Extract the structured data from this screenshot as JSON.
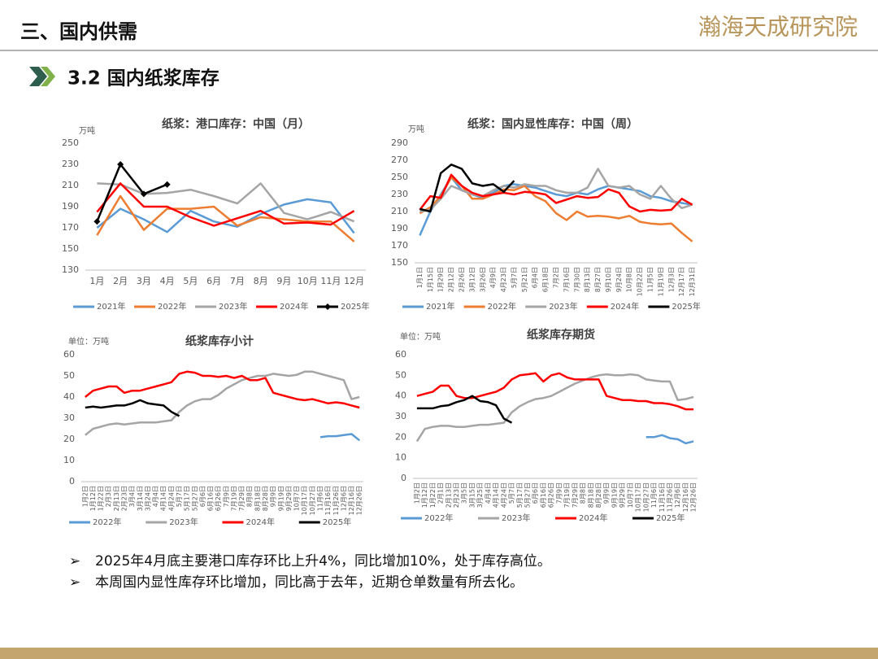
{
  "header": {
    "title": "三、国内供需",
    "logo": "瀚海天成研究院"
  },
  "section": {
    "title": "3.2 国内纸浆库存"
  },
  "bullets": [
    "2025年4月底主要港口库存环比上升4%，同比增加10%，处于库存高位。",
    "本周国内显性库存环比增加，同比高于去年，近期仓单数量有所去化。"
  ],
  "chart_data": [
    {
      "type": "line",
      "title": "纸浆：港口库存：中国（月）",
      "unit": "万吨",
      "categories": [
        "1月",
        "2月",
        "3月",
        "4月",
        "5月",
        "6月",
        "7月",
        "8月",
        "9月",
        "10月",
        "11月",
        "12月"
      ],
      "ylim": [
        130,
        250
      ],
      "yticks": [
        130,
        150,
        170,
        190,
        210,
        230,
        250
      ],
      "series": [
        {
          "name": "2021年",
          "color": "#5B9BD5",
          "values": [
            170,
            188,
            178,
            166,
            186,
            176,
            171,
            183,
            192,
            197,
            194,
            165
          ]
        },
        {
          "name": "2022年",
          "color": "#ED7D31",
          "values": [
            163,
            200,
            168,
            188,
            188,
            190,
            172,
            180,
            178,
            176,
            176,
            157
          ]
        },
        {
          "name": "2023年",
          "color": "#A5A5A5",
          "values": [
            212,
            211,
            202,
            203,
            206,
            200,
            193,
            212,
            184,
            178,
            185,
            176
          ]
        },
        {
          "name": "2024年",
          "color": "#FF0000",
          "values": [
            185,
            212,
            190,
            190,
            180,
            172,
            179,
            186,
            174,
            175,
            173,
            186
          ]
        },
        {
          "name": "2025年",
          "color": "#000000",
          "marker": "diamond",
          "values": [
            176,
            230,
            202,
            211,
            null,
            null,
            null,
            null,
            null,
            null,
            null,
            null
          ]
        }
      ]
    },
    {
      "type": "line",
      "title": "纸浆：国内显性库存：中国（周）",
      "unit": "万吨",
      "categories": [
        "1月1日",
        "1月15日",
        "1月29日",
        "2月12日",
        "2月26日",
        "3月12日",
        "3月26日",
        "4月9日",
        "4月23日",
        "5月7日",
        "5月21日",
        "6月4日",
        "6月18日",
        "7月2日",
        "7月16日",
        "7月30日",
        "8月13日",
        "8月27日",
        "9月10日",
        "9月24日",
        "10月8日",
        "10月22日",
        "11月5日",
        "11月19日",
        "12月3日",
        "12月17日",
        "12月31日"
      ],
      "ylim": [
        150,
        290
      ],
      "yticks": [
        150,
        170,
        190,
        210,
        230,
        250,
        270,
        290
      ],
      "series": [
        {
          "name": "2021年",
          "color": "#5B9BD5",
          "values": [
            182,
            210,
            230,
            250,
            235,
            230,
            226,
            232,
            240,
            242,
            240,
            238,
            234,
            230,
            228,
            232,
            230,
            236,
            240,
            238,
            236,
            234,
            228,
            226,
            222,
            220,
            218
          ]
        },
        {
          "name": "2022年",
          "color": "#ED7D31",
          "values": [
            208,
            215,
            228,
            250,
            240,
            225,
            225,
            230,
            236,
            235,
            240,
            228,
            222,
            208,
            200,
            210,
            204,
            205,
            204,
            202,
            205,
            198,
            196,
            195,
            196,
            185,
            175
          ]
        },
        {
          "name": "2023年",
          "color": "#A5A5A5",
          "values": [
            210,
            212,
            225,
            240,
            235,
            230,
            228,
            235,
            240,
            238,
            242,
            240,
            240,
            235,
            232,
            232,
            238,
            260,
            240,
            238,
            240,
            230,
            225,
            240,
            225,
            214,
            218
          ]
        },
        {
          "name": "2024年",
          "color": "#FF0000",
          "values": [
            212,
            228,
            226,
            253,
            240,
            232,
            228,
            230,
            232,
            230,
            233,
            232,
            230,
            220,
            224,
            228,
            226,
            227,
            236,
            232,
            216,
            210,
            212,
            211,
            212,
            225,
            218
          ]
        },
        {
          "name": "2025年",
          "color": "#000000",
          "values": [
            213,
            210,
            255,
            265,
            260,
            243,
            240,
            242,
            233,
            246,
            null,
            null,
            null,
            null,
            null,
            null,
            null,
            null,
            null,
            null,
            null,
            null,
            null,
            null,
            null,
            null,
            null
          ]
        }
      ]
    },
    {
      "type": "line",
      "title": "纸浆库存小计",
      "unit": "单位：万吨",
      "categories": [
        "1月2日",
        "1月12日",
        "1月22日",
        "2月3日",
        "2月13日",
        "2月23日",
        "3月4日",
        "3月14日",
        "3月24日",
        "4月4日",
        "4月14日",
        "4月24日",
        "5月7日",
        "5月17日",
        "5月27日",
        "6月6日",
        "6月16日",
        "6月26日",
        "7月9日",
        "7月19日",
        "7月29日",
        "8月8日",
        "8月18日",
        "8月28日",
        "9月9日",
        "9月19日",
        "9月29日",
        "10月7日",
        "10月17日",
        "10月27日",
        "11月6日",
        "11月16日",
        "11月26日",
        "12月6日",
        "12月16日",
        "12月26日"
      ],
      "ylim": [
        0,
        60
      ],
      "yticks": [
        0,
        10,
        20,
        30,
        40,
        50,
        60
      ],
      "series": [
        {
          "name": "2022年",
          "color": "#5B9BD5",
          "values": [
            null,
            null,
            null,
            null,
            null,
            null,
            null,
            null,
            null,
            null,
            null,
            null,
            null,
            null,
            null,
            null,
            null,
            null,
            null,
            null,
            null,
            null,
            null,
            null,
            null,
            null,
            null,
            null,
            null,
            null,
            21,
            21.5,
            21.5,
            22,
            22.5,
            19.5
          ]
        },
        {
          "name": "2023年",
          "color": "#A5A5A5",
          "values": [
            22,
            25,
            26,
            27,
            27.5,
            27,
            27.5,
            28,
            28,
            28,
            28.5,
            29,
            33,
            36,
            38,
            39,
            39,
            41,
            44,
            46,
            48,
            49,
            50,
            50,
            51,
            50.5,
            50,
            50.5,
            52,
            52,
            51,
            50,
            49,
            48,
            39,
            40
          ]
        },
        {
          "name": "2024年",
          "color": "#FF0000",
          "values": [
            40,
            43,
            44,
            45,
            45,
            42,
            43,
            43,
            44,
            45,
            46,
            47,
            51,
            52,
            51.5,
            50,
            50,
            49.5,
            50,
            49,
            50,
            48,
            48,
            49,
            42,
            41,
            40,
            39,
            38.5,
            39,
            38,
            37,
            37.5,
            37,
            36,
            35
          ]
        },
        {
          "name": "2025年",
          "color": "#000000",
          "values": [
            35,
            35.5,
            35,
            35.5,
            36,
            36,
            37,
            38.5,
            37,
            36.5,
            36,
            33,
            31,
            null,
            null,
            null,
            null,
            null,
            null,
            null,
            null,
            null,
            null,
            null,
            null,
            null,
            null,
            null,
            null,
            null,
            null,
            null,
            null,
            null,
            null,
            null
          ]
        }
      ]
    },
    {
      "type": "line",
      "title": "纸浆库存期货",
      "unit": "单位：万吨",
      "categories": [
        "1月2日",
        "1月12日",
        "1月22日",
        "2月1日",
        "2月13日",
        "2月23日",
        "3月5日",
        "3月15日",
        "3月25日",
        "4月4日",
        "4月14日",
        "4月24日",
        "5月7日",
        "5月17日",
        "5月27日",
        "6月6日",
        "6月16日",
        "6月26日",
        "7月9日",
        "7月19日",
        "7月29日",
        "8月8日",
        "8月18日",
        "8月28日",
        "9月9日",
        "9月19日",
        "9月29日",
        "10月7日",
        "10月17日",
        "10月27日",
        "11月6日",
        "11月16日",
        "11月26日",
        "12月6日",
        "12月16日",
        "12月26日"
      ],
      "ylim": [
        0,
        60
      ],
      "yticks": [
        0,
        10,
        20,
        30,
        40,
        50,
        60
      ],
      "series": [
        {
          "name": "2022年",
          "color": "#5B9BD5",
          "values": [
            null,
            null,
            null,
            null,
            null,
            null,
            null,
            null,
            null,
            null,
            null,
            null,
            null,
            null,
            null,
            null,
            null,
            null,
            null,
            null,
            null,
            null,
            null,
            null,
            null,
            null,
            null,
            null,
            null,
            20,
            20,
            21,
            19.5,
            19,
            17,
            18
          ]
        },
        {
          "name": "2023年",
          "color": "#A5A5A5",
          "values": [
            18,
            24,
            25,
            25.5,
            25.5,
            25,
            25,
            25.5,
            26,
            26,
            26.5,
            27,
            32,
            35,
            37,
            38.5,
            39,
            40,
            42,
            44,
            46,
            47.5,
            49,
            50,
            50.5,
            50,
            50,
            50.5,
            50,
            48,
            47.5,
            47,
            47,
            38,
            38.5,
            39.5
          ]
        },
        {
          "name": "2024年",
          "color": "#FF0000",
          "values": [
            40,
            41,
            42,
            45,
            45,
            40,
            39,
            39,
            40,
            41,
            42,
            44,
            48,
            50,
            50.5,
            51,
            47,
            50,
            51,
            49,
            48,
            48,
            48,
            48,
            40,
            39,
            38,
            38,
            37.5,
            37.5,
            36.5,
            36.5,
            36,
            35,
            33.5,
            33.5
          ]
        },
        {
          "name": "2025年",
          "color": "#000000",
          "values": [
            34,
            34,
            34,
            35,
            35.5,
            37,
            38,
            40,
            37.5,
            37,
            35.5,
            29,
            27,
            null,
            null,
            null,
            null,
            null,
            null,
            null,
            null,
            null,
            null,
            null,
            null,
            null,
            null,
            null,
            null,
            null,
            null,
            null,
            null,
            null,
            null,
            null
          ]
        }
      ]
    }
  ]
}
